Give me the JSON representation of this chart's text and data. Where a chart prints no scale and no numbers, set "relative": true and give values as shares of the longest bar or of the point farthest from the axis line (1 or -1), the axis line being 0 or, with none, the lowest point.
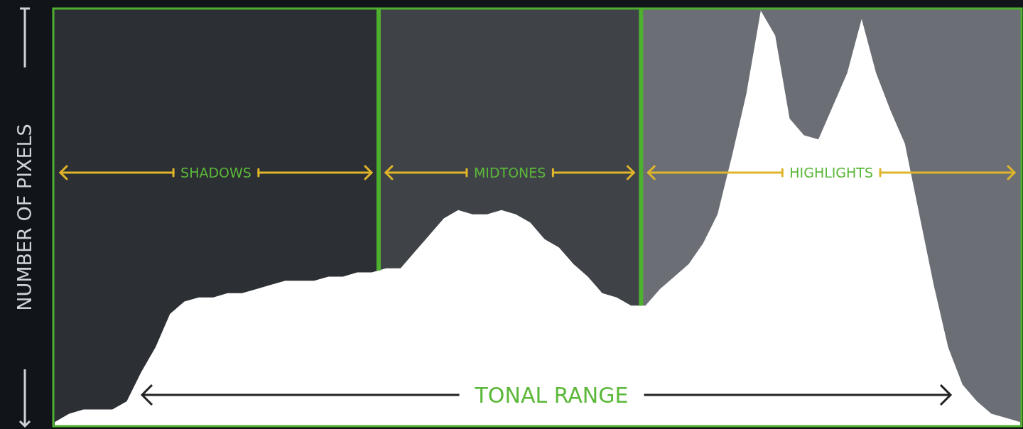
{
  "chart_data": {
    "type": "area",
    "relative": true,
    "xlabel": "TONAL RANGE",
    "ylabel": "NUMBER OF PIXELS",
    "color": "#ffffff",
    "categories": [
      null,
      null,
      null,
      null,
      null,
      null,
      null,
      null,
      null,
      null,
      null,
      null,
      null,
      null,
      null,
      null,
      null,
      null,
      null,
      null,
      null,
      null,
      null,
      null,
      null,
      null,
      null,
      null,
      null,
      null,
      null,
      null,
      null,
      null,
      null,
      null,
      null,
      null,
      null,
      null,
      null,
      null,
      null,
      null,
      null,
      null,
      null,
      null,
      null,
      null,
      null,
      null,
      null,
      null,
      null,
      null,
      null,
      null,
      null,
      null,
      null,
      null,
      null,
      null,
      null,
      null,
      null,
      null
    ],
    "values": [
      0.01,
      0.03,
      0.04,
      0.04,
      0.04,
      0.06,
      0.13,
      0.19,
      0.27,
      0.3,
      0.31,
      0.31,
      0.32,
      0.32,
      0.33,
      0.34,
      0.35,
      0.35,
      0.35,
      0.36,
      0.36,
      0.37,
      0.37,
      0.38,
      0.38,
      0.42,
      0.46,
      0.5,
      0.52,
      0.51,
      0.51,
      0.52,
      0.51,
      0.49,
      0.45,
      0.43,
      0.39,
      0.36,
      0.32,
      0.31,
      0.29,
      0.29,
      0.33,
      0.36,
      0.39,
      0.44,
      0.51,
      0.65,
      0.8,
      1,
      0.94,
      0.74,
      0.7,
      0.69,
      0.77,
      0.85,
      0.98,
      0.85,
      0.76,
      0.68,
      0.51,
      0.34,
      0.19,
      0.1,
      0.06,
      0.03,
      0.02,
      0.01
    ],
    "annotations": [
      "SHADOWS",
      "MIDTONES",
      "HIGHLIGHTS"
    ]
  }
}
